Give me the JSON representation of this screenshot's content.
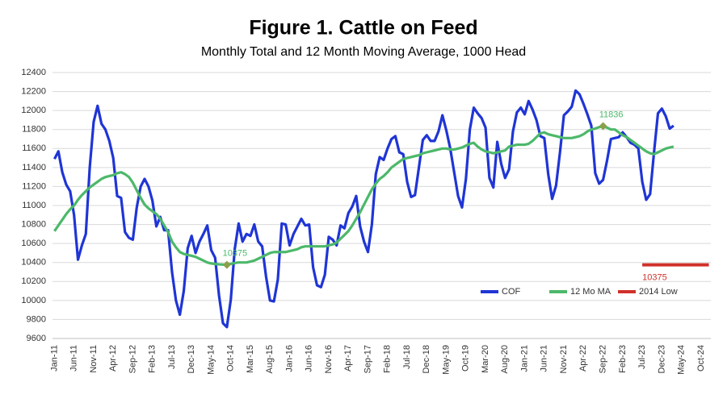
{
  "chart_data": {
    "type": "line",
    "title": "Figure 1. Cattle on Feed",
    "subtitle": "Monthly Total and 12 Month Moving Average, 1000 Head",
    "categories": [
      "Jan-11",
      null,
      null,
      null,
      null,
      "Jun-11",
      null,
      null,
      null,
      null,
      "Nov-11",
      null,
      null,
      null,
      null,
      "Apr-12",
      null,
      null,
      null,
      null,
      "Sep-12",
      null,
      null,
      null,
      null,
      "Feb-13",
      null,
      null,
      null,
      null,
      "Jul-13",
      null,
      null,
      null,
      null,
      "Dec-13",
      null,
      null,
      null,
      null,
      "May-14",
      null,
      null,
      null,
      null,
      "Oct-14",
      null,
      null,
      null,
      null,
      "Mar-15",
      null,
      null,
      null,
      null,
      "Aug-15",
      null,
      null,
      null,
      null,
      "Jan-16",
      null,
      null,
      null,
      null,
      "Jun-16",
      null,
      null,
      null,
      null,
      "Nov-16",
      null,
      null,
      null,
      null,
      "Apr-17",
      null,
      null,
      null,
      null,
      "Sep-17",
      null,
      null,
      null,
      null,
      "Feb-18",
      null,
      null,
      null,
      null,
      "Jul-18",
      null,
      null,
      null,
      null,
      "Dec-18",
      null,
      null,
      null,
      null,
      "May-19",
      null,
      null,
      null,
      null,
      "Oct-19",
      null,
      null,
      null,
      null,
      "Mar-20",
      null,
      null,
      null,
      null,
      "Aug-20",
      null,
      null,
      null,
      null,
      "Jan-21",
      null,
      null,
      null,
      null,
      "Jun-21",
      null,
      null,
      null,
      null,
      "Nov-21",
      null,
      null,
      null,
      null,
      "Apr-22",
      null,
      null,
      null,
      null,
      "Sep-22",
      null,
      null,
      null,
      null,
      "Feb-23",
      null,
      null,
      null,
      null,
      "Jul-23",
      null,
      null,
      null,
      null,
      "Dec-23",
      null,
      null,
      null,
      null,
      "May-24",
      null,
      null,
      null,
      null,
      "Oct-24",
      null,
      null
    ],
    "series": [
      {
        "name": "COF",
        "color": "#1f35d6",
        "values": [
          11490,
          11570,
          11350,
          11220,
          11150,
          10900,
          10430,
          10580,
          10700,
          11400,
          11880,
          12050,
          11860,
          11800,
          11680,
          11500,
          11100,
          11080,
          10720,
          10660,
          10640,
          10980,
          11200,
          11280,
          11200,
          11050,
          10780,
          10880,
          10740,
          10740,
          10300,
          10000,
          9850,
          10100,
          10550,
          10680,
          10500,
          10620,
          10700,
          10790,
          10530,
          10450,
          10050,
          9760,
          9720,
          10010,
          10540,
          10810,
          10620,
          10700,
          10680,
          10800,
          10620,
          10570,
          10250,
          10000,
          9990,
          10220,
          10810,
          10800,
          10580,
          10700,
          10780,
          10860,
          10790,
          10800,
          10350,
          10160,
          10140,
          10270,
          10670,
          10640,
          10580,
          10790,
          10760,
          10920,
          10990,
          11100,
          10780,
          10620,
          10510,
          10800,
          11330,
          11510,
          11480,
          11600,
          11700,
          11730,
          11560,
          11540,
          11250,
          11090,
          11110,
          11400,
          11690,
          11740,
          11680,
          11680,
          11780,
          11950,
          11790,
          11600,
          11350,
          11100,
          10980,
          11280,
          11800,
          12030,
          11970,
          11920,
          11820,
          11290,
          11190,
          11670,
          11440,
          11290,
          11380,
          11780,
          11980,
          12030,
          11960,
          12100,
          12010,
          11900,
          11730,
          11710,
          11330,
          11070,
          11210,
          11560,
          11950,
          11990,
          12040,
          12210,
          12170,
          12070,
          11960,
          11840,
          11340,
          11230,
          11270,
          11470,
          11700,
          11710,
          11720,
          11770,
          11720,
          11660,
          11640,
          11600,
          11250,
          11060,
          11120,
          11560,
          11970,
          12020,
          11940,
          11810,
          11840,
          null,
          null,
          null,
          null,
          null,
          null,
          null,
          null,
          null
        ]
      },
      {
        "name": "12 Mo MA",
        "color": "#4cb86a",
        "values": [
          10730,
          10790,
          10850,
          10910,
          10960,
          11000,
          11060,
          11110,
          11150,
          11190,
          11220,
          11250,
          11280,
          11300,
          11310,
          11320,
          11340,
          11350,
          11330,
          11300,
          11240,
          11160,
          11080,
          11010,
          10970,
          10940,
          10910,
          10860,
          10790,
          10720,
          10620,
          10560,
          10510,
          10490,
          10480,
          10470,
          10460,
          10440,
          10420,
          10400,
          10390,
          10385,
          10380,
          10378,
          10375,
          10385,
          10395,
          10400,
          10400,
          10400,
          10410,
          10420,
          10440,
          10460,
          10480,
          10500,
          10510,
          10510,
          10510,
          10510,
          10520,
          10530,
          10540,
          10560,
          10570,
          10570,
          10570,
          10570,
          10570,
          10570,
          10580,
          10590,
          10610,
          10650,
          10690,
          10730,
          10790,
          10860,
          10930,
          11010,
          11090,
          11170,
          11230,
          11280,
          11310,
          11350,
          11400,
          11430,
          11460,
          11490,
          11500,
          11510,
          11520,
          11530,
          11550,
          11560,
          11570,
          11580,
          11590,
          11600,
          11600,
          11590,
          11590,
          11600,
          11610,
          11630,
          11650,
          11660,
          11620,
          11590,
          11570,
          11560,
          11550,
          11560,
          11570,
          11580,
          11620,
          11630,
          11640,
          11640,
          11640,
          11650,
          11680,
          11720,
          11760,
          11770,
          11750,
          11740,
          11730,
          11720,
          11710,
          11710,
          11710,
          11720,
          11730,
          11750,
          11780,
          11800,
          11810,
          11825,
          11836,
          11820,
          11800,
          11800,
          11770,
          11740,
          11720,
          11690,
          11660,
          11630,
          11600,
          11570,
          11550,
          11540,
          11560,
          11580,
          11600,
          11610,
          11620,
          null,
          null,
          null,
          null,
          null,
          null,
          null,
          null,
          null
        ],
        "value_labels": [
          null,
          null,
          null,
          null,
          null,
          null,
          null,
          null,
          null,
          null,
          null,
          null,
          null,
          null,
          null,
          null,
          null,
          null,
          null,
          null,
          null,
          null,
          null,
          null,
          null,
          null,
          null,
          null,
          null,
          null,
          null,
          null,
          null,
          null,
          null,
          null,
          null,
          null,
          null,
          null,
          null,
          null,
          null,
          null,
          "10375",
          null,
          null,
          null,
          null,
          null,
          null,
          null,
          null,
          null,
          null,
          null,
          null,
          null,
          null,
          null,
          null,
          null,
          null,
          null,
          null,
          null,
          null,
          null,
          null,
          null,
          null,
          null,
          null,
          null,
          null,
          null,
          null,
          null,
          null,
          null,
          null,
          null,
          null,
          null,
          null,
          null,
          null,
          null,
          null,
          null,
          null,
          null,
          null,
          null,
          null,
          null,
          null,
          null,
          null,
          null,
          null,
          null,
          null,
          null,
          null,
          null,
          null,
          null,
          null,
          null,
          null,
          null,
          null,
          null,
          null,
          null,
          null,
          null,
          null,
          null,
          null,
          null,
          null,
          null,
          null,
          null,
          null,
          null,
          null,
          null,
          null,
          null,
          null,
          null,
          null,
          null,
          null,
          null,
          null,
          null,
          "11836",
          null,
          null,
          null,
          null,
          null,
          null,
          null,
          null,
          null,
          null,
          null,
          null,
          null,
          null,
          null,
          null,
          null,
          null,
          null,
          null,
          null,
          null,
          null,
          null,
          null,
          null,
          null
        ]
      },
      {
        "name": "2014 Low",
        "color": "#d0302a",
        "values": [
          null,
          null,
          null,
          null,
          null,
          null,
          null,
          null,
          null,
          null,
          null,
          null,
          null,
          null,
          null,
          null,
          null,
          null,
          null,
          null,
          null,
          null,
          null,
          null,
          null,
          null,
          null,
          null,
          null,
          null,
          null,
          null,
          null,
          null,
          null,
          null,
          null,
          null,
          null,
          null,
          null,
          null,
          null,
          null,
          null,
          null,
          null,
          null,
          null,
          null,
          null,
          null,
          null,
          null,
          null,
          null,
          null,
          null,
          null,
          null,
          null,
          null,
          null,
          null,
          null,
          null,
          null,
          null,
          null,
          null,
          null,
          null,
          null,
          null,
          null,
          null,
          null,
          null,
          null,
          null,
          null,
          null,
          null,
          null,
          null,
          null,
          null,
          null,
          null,
          null,
          null,
          null,
          null,
          null,
          null,
          null,
          null,
          null,
          null,
          null,
          null,
          null,
          null,
          null,
          null,
          null,
          null,
          null,
          null,
          null,
          null,
          null,
          null,
          null,
          null,
          null,
          null,
          null,
          null,
          null,
          null,
          null,
          null,
          null,
          null,
          null,
          null,
          null,
          null,
          null,
          null,
          null,
          null,
          null,
          null,
          null,
          null,
          null,
          null,
          null,
          null,
          null,
          null,
          null,
          null,
          null,
          null,
          null,
          null,
          null,
          10375,
          10375,
          10375,
          10375,
          10375,
          10375,
          10375,
          10375,
          10375,
          10375,
          10375,
          10375,
          10375,
          10375,
          10375,
          10375,
          10375,
          10375
        ],
        "value_labels": [
          null,
          null,
          null,
          null,
          null,
          null,
          null,
          null,
          null,
          null,
          null,
          null,
          null,
          null,
          null,
          null,
          null,
          null,
          null,
          null,
          null,
          null,
          null,
          null,
          null,
          null,
          null,
          null,
          null,
          null,
          null,
          null,
          null,
          null,
          null,
          null,
          null,
          null,
          null,
          null,
          null,
          null,
          null,
          null,
          null,
          null,
          null,
          null,
          null,
          null,
          null,
          null,
          null,
          null,
          null,
          null,
          null,
          null,
          null,
          null,
          null,
          null,
          null,
          null,
          null,
          null,
          null,
          null,
          null,
          null,
          null,
          null,
          null,
          null,
          null,
          null,
          null,
          null,
          null,
          null,
          null,
          null,
          null,
          null,
          null,
          null,
          null,
          null,
          null,
          null,
          null,
          null,
          null,
          null,
          null,
          null,
          null,
          null,
          null,
          null,
          null,
          null,
          null,
          null,
          null,
          null,
          null,
          null,
          null,
          null,
          null,
          null,
          null,
          null,
          null,
          null,
          null,
          null,
          null,
          null,
          null,
          null,
          null,
          null,
          null,
          null,
          null,
          null,
          null,
          null,
          null,
          null,
          null,
          null,
          null,
          null,
          null,
          null,
          null,
          null,
          null,
          null,
          null,
          null,
          null,
          null,
          null,
          null,
          null,
          null,
          "10375",
          null,
          null,
          null,
          null,
          null,
          null,
          null,
          null,
          null,
          null,
          null,
          null,
          null,
          null,
          null,
          null,
          null
        ]
      }
    ],
    "ylim": [
      9600,
      12400
    ],
    "yticks": [
      9600,
      9800,
      10000,
      10200,
      10400,
      10600,
      10800,
      11000,
      11200,
      11400,
      11600,
      11800,
      12000,
      12200,
      12400
    ],
    "grid": true,
    "legend": "lower right"
  }
}
